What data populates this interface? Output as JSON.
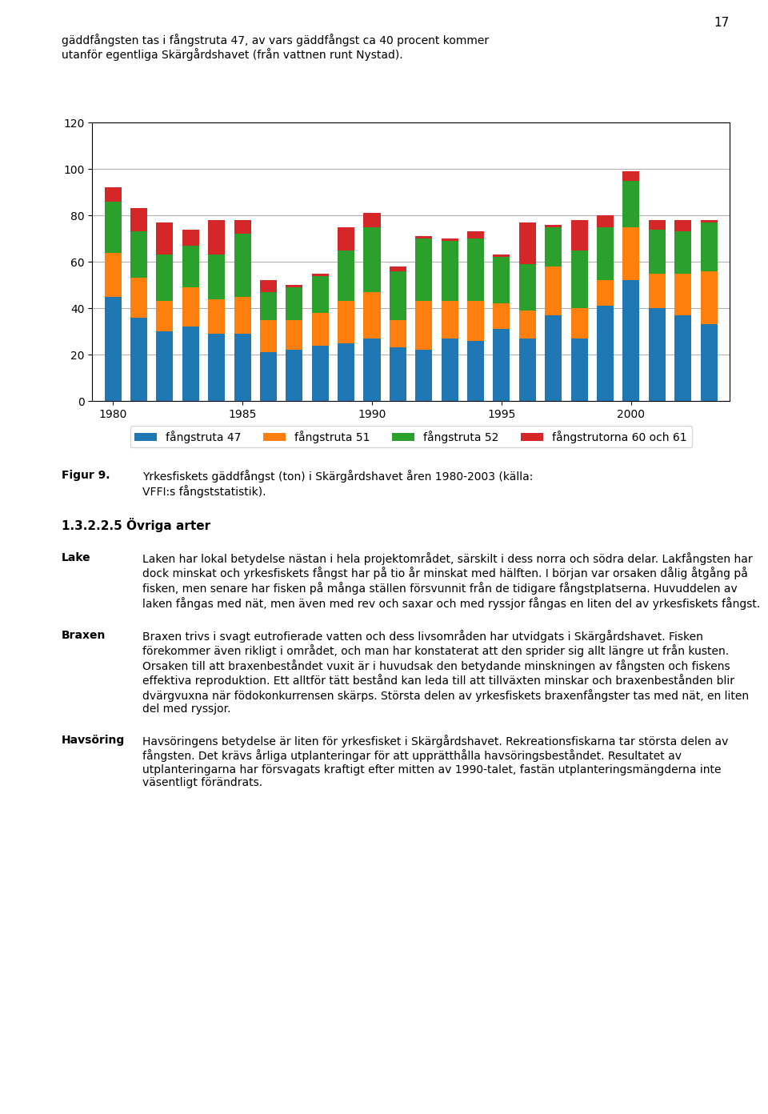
{
  "chart_data": {
    "type": "bar",
    "stacked": true,
    "x": [
      1980,
      1981,
      1982,
      1983,
      1984,
      1985,
      1986,
      1987,
      1988,
      1989,
      1990,
      1991,
      1992,
      1993,
      1994,
      1995,
      1996,
      1997,
      1998,
      1999,
      2000,
      2001,
      2002,
      2003
    ],
    "series": [
      {
        "name": "fångstruta 47",
        "values": [
          45,
          36,
          30,
          32,
          29,
          29,
          21,
          22,
          24,
          25,
          27,
          23,
          22,
          27,
          26,
          31,
          27,
          37,
          27,
          41,
          52,
          40,
          37,
          33
        ]
      },
      {
        "name": "fångstruta 51",
        "values": [
          19,
          17,
          13,
          17,
          15,
          16,
          14,
          13,
          14,
          18,
          20,
          12,
          21,
          16,
          17,
          11,
          12,
          21,
          13,
          11,
          23,
          15,
          18,
          23
        ]
      },
      {
        "name": "fångstruta 52",
        "values": [
          22,
          20,
          20,
          18,
          19,
          27,
          12,
          14,
          16,
          22,
          28,
          21,
          27,
          26,
          27,
          20,
          20,
          17,
          25,
          23,
          20,
          19,
          18,
          21
        ]
      },
      {
        "name": "fångstrutorna 60 och 61",
        "values": [
          6,
          10,
          14,
          7,
          15,
          6,
          5,
          1,
          1,
          10,
          6,
          2,
          1,
          1,
          3,
          1,
          18,
          1,
          13,
          5,
          4,
          4,
          5,
          1
        ]
      }
    ],
    "xlim": [
      1979.2,
      2003.8
    ],
    "xticks": [
      1980,
      1985,
      1990,
      1995,
      2000
    ],
    "ylim": [
      0,
      120
    ],
    "yticks": [
      0,
      20,
      40,
      60,
      80,
      100,
      120
    ],
    "grid": true,
    "legend": "upper center",
    "annotations": [
      "17",
      "gäddfångsten tas i fångstruta 47, av vars gäddfångst ca 40 procent kommer\nutanför egentliga Skärgårdshavet (från vattnen runt Nystad).",
      "Figur 9.",
      "Yrkesfiskets gäddfångst (ton) i Skärgårdshavet åren 1980-2003 (källa:\nVFFI:s fångststatistik).",
      "1.3.2.2.5 Övriga arter",
      "Lake",
      "Laken har lokal betydelse nästan i hela projektområdet, särskilt i dess norra och södra delar. Lakfångsten har dock minskat och yrkesfiskets fångst har på tio år minskat med hälften. I början var orsaken dålig åtgång på fisken, men senare har fisken på många ställen försvunnit från de tidigare fångstplatserna. Huvuddelen av laken fångas med nät, men även med rev och saxar och med ryssjor fångas en liten del av yrkesfiskets fångst.",
      "Braxen",
      "Braxen trivs i svagt eutrofierade vatten och dess livsområden har utvidgats i Skärgårdshavet. Fisken förekommer även rikligt i området, och man har konstaterat att den sprider sig allt längre ut från kusten. Orsaken till att braxenbeståndet vuxit är i huvudsak den betydande minskningen av fångsten och fiskens effektiva reproduktion. Ett alltför tätt bestånd kan leda till att tillväxten minskar och braxenbestånden blir dvärgvuxna när födokonkurrensen skärps. Största delen av yrkesfiskets braxenfångster tas med nät, en liten del med ryssjor.",
      "Havsöring",
      "Havsöringens betydelse är liten för yrkesfisket i Skärgårdshavet. Rekreationsfiskarna tar största delen av fångsten. Det krävs årliga utplanteringar för att upprätthålla havsöringsbeståndet. Resultatet av utplanteringarna har försvagats kraftigt efter mitten av 1990-talet, fastän utplanteringsmängderna inte väsentligt förändrats."
    ]
  }
}
